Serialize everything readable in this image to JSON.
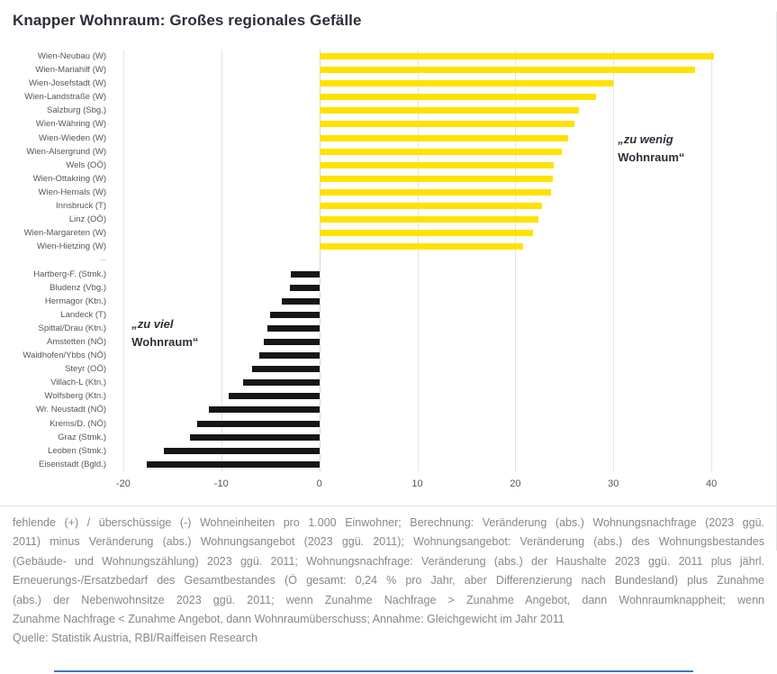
{
  "title": "Knapper Wohnraum: Großes regionales Gefälle",
  "annotations": {
    "too_little": {
      "line1": "„zu wenig",
      "line2": "Wohnraum“"
    },
    "too_much": {
      "line1": "„zu viel",
      "line2": "Wohnraum“"
    }
  },
  "chart_data": {
    "type": "bar",
    "orientation": "horizontal",
    "title": "Knapper Wohnraum: Großes regionales Gefälle",
    "xlabel": "fehlende (+) / überschüssige (-) Wohneinheiten pro 1.000 Einwohner",
    "xlim": [
      -21,
      41
    ],
    "xticks": [
      -20,
      -10,
      0,
      10,
      20,
      30,
      40
    ],
    "grid": true,
    "legend": "none",
    "bar_colors": {
      "positive": "#FFE200",
      "negative": "#161616"
    },
    "rows": [
      {
        "label": "Wien-Neubau (W)",
        "value": 40.3
      },
      {
        "label": "Wien-Mariahilf (W)",
        "value": 38.3
      },
      {
        "label": "Wien-Josefstadt (W)",
        "value": 30.0
      },
      {
        "label": "Wien-Landstraße (W)",
        "value": 28.2
      },
      {
        "label": "Salzburg (Sbg.)",
        "value": 26.5
      },
      {
        "label": "Wien-Währing (W)",
        "value": 26.0
      },
      {
        "label": "Wien-Wieden (W)",
        "value": 25.4
      },
      {
        "label": "Wien-Alsergrund (W)",
        "value": 24.7
      },
      {
        "label": "Wels (OÖ)",
        "value": 23.9
      },
      {
        "label": "Wien-Ottakring (W)",
        "value": 23.8
      },
      {
        "label": "Wien-Hernals (W)",
        "value": 23.6
      },
      {
        "label": "Innsbruck (T)",
        "value": 22.7
      },
      {
        "label": "Linz (OÖ)",
        "value": 22.4
      },
      {
        "label": "Wien-Margareten (W)",
        "value": 21.8
      },
      {
        "label": "Wien-Hietzing (W)",
        "value": 20.8
      },
      {
        "label": "...",
        "value": null
      },
      {
        "label": "Hartberg-F. (Stmk.)",
        "value": -2.9
      },
      {
        "label": "Bludenz (Vbg.)",
        "value": -3.0
      },
      {
        "label": "Hermagor (Ktn.)",
        "value": -3.8
      },
      {
        "label": "Landeck (T)",
        "value": -5.0
      },
      {
        "label": "Spittal/Drau (Ktn.)",
        "value": -5.3
      },
      {
        "label": "Amstetten (NÖ)",
        "value": -5.7
      },
      {
        "label": "Waidhofen/Ybbs (NÖ)",
        "value": -6.1
      },
      {
        "label": "Steyr (OÖ)",
        "value": -6.9
      },
      {
        "label": "Villach-L (Ktn.)",
        "value": -7.8
      },
      {
        "label": "Wolfsberg (Ktn.)",
        "value": -9.2
      },
      {
        "label": "Wr. Neustadt (NÖ)",
        "value": -11.3
      },
      {
        "label": "Krems/D. (NÖ)",
        "value": -12.5
      },
      {
        "label": "Graz (Stmk.)",
        "value": -13.2
      },
      {
        "label": "Leoben (Stmk.)",
        "value": -15.9
      },
      {
        "label": "Eisenstadt (Bgld.)",
        "value": -17.6
      }
    ]
  },
  "footnote": {
    "lines": [
      "fehlende (+) / überschüssige (-) Wohneinheiten pro 1.000 Einwohner; Berechnung: Veränderung (abs.) Wohnungsnachfrage (2023 ggü.",
      "2011) minus Veränderung (abs.) Wohnungsangebot (2023 ggü. 2011); Wohnungsangebot: Veränderung (abs.) des Wohnungsbestandes",
      "(Gebäude- und Wohnungszählung) 2023 ggü. 2011; Wohnungsnachfrage: Veränderung (abs.) der Haushalte 2023 ggü. 2011 plus jährl.",
      "Erneuerungs-/Ersatzbedarf des Gesamtbestandes (Ö gesamt: 0,24 % pro Jahr, aber Differenzierung nach Bundesland) plus Zunahme",
      "(abs.) der Nebenwohnsitze 2023 ggü. 2011; wenn Zunahme Nachfrage > Zunahme Angebot, dann Wohnraumknappheit; wenn",
      "Zunahme Nachfrage < Zunahme Angebot, dann Wohnraumüberschuss; Annahme: Gleichgewicht im Jahr 2011"
    ]
  },
  "source": "Quelle: Statistik Austria, RBI/Raiffeisen Research",
  "colors": {
    "positive_bar": "#FFE200",
    "negative_bar": "#161616",
    "accent_line": "#4472C4"
  }
}
